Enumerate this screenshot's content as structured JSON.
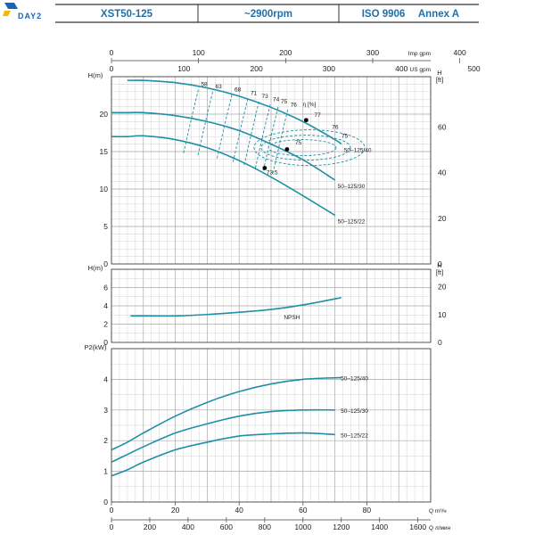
{
  "header": {
    "logo_text": "DAY2",
    "model": "XST50-125",
    "speed": "~2900rpm",
    "standard": "ISO 9906",
    "annex": "Annex A"
  },
  "colors": {
    "curve": "#1f8fa6",
    "header": "#1f6fa8",
    "grid": "#c8c8c8",
    "logo": "#1565c0"
  },
  "chart_data": {
    "type": "line",
    "flow_axes": {
      "imp_gpm": {
        "unit": "Imp gpm",
        "ticks": [
          0,
          100,
          200,
          300,
          400
        ]
      },
      "us_gpm": {
        "unit": "US gpm",
        "ticks": [
          0,
          100,
          200,
          300,
          400,
          500
        ]
      },
      "m3h": {
        "unit": "Q   m³/ч",
        "ticks": [
          0,
          20,
          40,
          60,
          80
        ]
      },
      "lmin": {
        "unit": "Q   л/мин",
        "ticks": [
          0,
          200,
          400,
          600,
          800,
          1000,
          1200,
          1400,
          1600
        ]
      },
      "xlim_m3h": [
        0,
        100
      ]
    },
    "head_panel": {
      "ylabel": "H(m)",
      "ylabel_right": "H [ft]",
      "ylim": [
        0,
        25
      ],
      "yticks": [
        0,
        5,
        10,
        15,
        20
      ],
      "ft_ticks": [
        0,
        20,
        40,
        60
      ],
      "series": [
        {
          "name": "50–125/40",
          "x": [
            5,
            10,
            20,
            30,
            40,
            50,
            60,
            70,
            72
          ],
          "y": [
            24.5,
            24.5,
            24.2,
            23.5,
            22.4,
            20.9,
            19.0,
            16.6,
            16.0
          ]
        },
        {
          "name": "50–125/30",
          "x": [
            0,
            5,
            10,
            20,
            30,
            40,
            50,
            60,
            70
          ],
          "y": [
            20.2,
            20.2,
            20.2,
            19.8,
            19.0,
            17.8,
            16.0,
            13.9,
            11.2
          ]
        },
        {
          "name": "50–125/22",
          "x": [
            0,
            5,
            10,
            20,
            30,
            40,
            50,
            60,
            70
          ],
          "y": [
            17.0,
            17.0,
            17.1,
            16.6,
            15.5,
            13.8,
            11.6,
            9.1,
            6.5
          ]
        }
      ],
      "efficiency": {
        "label": "η [%]",
        "contours": [
          {
            "label": "58",
            "x": 27.5,
            "y": 23.5
          },
          {
            "label": "63",
            "x": 32,
            "y": 23.2
          },
          {
            "label": "68",
            "x": 38,
            "y": 22.8
          },
          {
            "label": "71",
            "x": 43,
            "y": 22.3
          },
          {
            "label": "73",
            "x": 46.5,
            "y": 21.9
          },
          {
            "label": "74",
            "x": 50,
            "y": 21.5
          },
          {
            "label": "75",
            "x": 52.5,
            "y": 21.2
          },
          {
            "label": "76",
            "x": 55.5,
            "y": 20.8
          },
          {
            "label": "77",
            "x": 63,
            "y": 19.4
          },
          {
            "label": "76",
            "x": 68.5,
            "y": 17.8
          },
          {
            "label": "75",
            "x": 71.5,
            "y": 16.6
          },
          {
            "label": "75",
            "x": 57,
            "y": 15.7
          },
          {
            "label": "73.5",
            "x": 48,
            "y": 11.7
          }
        ]
      }
    },
    "npsh_panel": {
      "ylabel": "H(m)",
      "ylabel_right": "H [ft]",
      "ylim": [
        0,
        8
      ],
      "yticks": [
        0,
        2,
        4,
        6
      ],
      "ft_ticks": [
        0,
        10,
        20
      ],
      "series": [
        {
          "name": "NPSH",
          "x": [
            6,
            10,
            20,
            30,
            40,
            50,
            60,
            72
          ],
          "y": [
            2.9,
            2.9,
            2.9,
            3.05,
            3.3,
            3.6,
            4.1,
            4.9
          ]
        }
      ]
    },
    "power_panel": {
      "ylabel": "P2(kW)",
      "ylim": [
        0,
        5
      ],
      "yticks": [
        0,
        1,
        2,
        3,
        4
      ],
      "series": [
        {
          "name": "50–125/40",
          "x": [
            0,
            5,
            10,
            20,
            30,
            40,
            50,
            60,
            70,
            72
          ],
          "y": [
            1.7,
            1.95,
            2.25,
            2.8,
            3.25,
            3.6,
            3.85,
            4.0,
            4.05,
            4.05
          ]
        },
        {
          "name": "50–125/30",
          "x": [
            0,
            5,
            10,
            20,
            30,
            40,
            50,
            60,
            70
          ],
          "y": [
            1.3,
            1.55,
            1.8,
            2.25,
            2.55,
            2.8,
            2.95,
            3.0,
            3.0
          ]
        },
        {
          "name": "50–125/22",
          "x": [
            0,
            5,
            10,
            20,
            30,
            40,
            50,
            60,
            70
          ],
          "y": [
            0.85,
            1.05,
            1.3,
            1.7,
            1.95,
            2.15,
            2.22,
            2.25,
            2.2
          ]
        }
      ]
    }
  }
}
